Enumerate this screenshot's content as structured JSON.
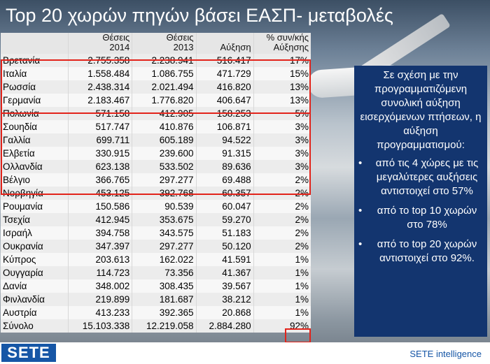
{
  "title": "Top 20 χωρών πηγών βάσει ΕΑΣΠ- μεταβολές",
  "table": {
    "headers": [
      {
        "line1": "",
        "line2": ""
      },
      {
        "line1": "Θέσεις",
        "line2": "2014"
      },
      {
        "line1": "Θέσεις",
        "line2": "2013"
      },
      {
        "line1": "",
        "line2": "Αύξηση"
      },
      {
        "line1": "% συν/κής",
        "line2": "Αύξησης"
      }
    ],
    "rows": [
      {
        "country": "Βρετανία",
        "seats2014": "2.755.358",
        "seats2013": "2.238.941",
        "increase": "516.417",
        "pct": "17%"
      },
      {
        "country": "Ιταλία",
        "seats2014": "1.558.484",
        "seats2013": "1.086.755",
        "increase": "471.729",
        "pct": "15%"
      },
      {
        "country": "Ρωσσία",
        "seats2014": "2.438.314",
        "seats2013": "2.021.494",
        "increase": "416.820",
        "pct": "13%"
      },
      {
        "country": "Γερμανία",
        "seats2014": "2.183.467",
        "seats2013": "1.776.820",
        "increase": "406.647",
        "pct": "13%"
      },
      {
        "country": "Πολωνία",
        "seats2014": "571.158",
        "seats2013": "412.905",
        "increase": "158.253",
        "pct": "5%"
      },
      {
        "country": "Σουηδία",
        "seats2014": "517.747",
        "seats2013": "410.876",
        "increase": "106.871",
        "pct": "3%"
      },
      {
        "country": "Γαλλία",
        "seats2014": "699.711",
        "seats2013": "605.189",
        "increase": "94.522",
        "pct": "3%"
      },
      {
        "country": "Ελβετία",
        "seats2014": "330.915",
        "seats2013": "239.600",
        "increase": "91.315",
        "pct": "3%"
      },
      {
        "country": "Ολλανδία",
        "seats2014": "623.138",
        "seats2013": "533.502",
        "increase": "89.636",
        "pct": "3%"
      },
      {
        "country": "Βέλγιο",
        "seats2014": "366.765",
        "seats2013": "297.277",
        "increase": "69.488",
        "pct": "2%"
      },
      {
        "country": "Νορβηγία",
        "seats2014": "453.125",
        "seats2013": "392.768",
        "increase": "60.357",
        "pct": "2%"
      },
      {
        "country": "Ρουμανία",
        "seats2014": "150.586",
        "seats2013": "90.539",
        "increase": "60.047",
        "pct": "2%"
      },
      {
        "country": "Τσεχία",
        "seats2014": "412.945",
        "seats2013": "353.675",
        "increase": "59.270",
        "pct": "2%"
      },
      {
        "country": "Ισραήλ",
        "seats2014": "394.758",
        "seats2013": "343.575",
        "increase": "51.183",
        "pct": "2%"
      },
      {
        "country": "Ουκρανία",
        "seats2014": "347.397",
        "seats2013": "297.277",
        "increase": "50.120",
        "pct": "2%"
      },
      {
        "country": "Κύπρος",
        "seats2014": "203.613",
        "seats2013": "162.022",
        "increase": "41.591",
        "pct": "1%"
      },
      {
        "country": "Ουγγαρία",
        "seats2014": "114.723",
        "seats2013": "73.356",
        "increase": "41.367",
        "pct": "1%"
      },
      {
        "country": "Δανία",
        "seats2014": "348.002",
        "seats2013": "308.435",
        "increase": "39.567",
        "pct": "1%"
      },
      {
        "country": "Φινλανδία",
        "seats2014": "219.899",
        "seats2013": "181.687",
        "increase": "38.212",
        "pct": "1%"
      },
      {
        "country": "Αυστρία",
        "seats2014": "413.233",
        "seats2013": "392.365",
        "increase": "20.868",
        "pct": "1%"
      },
      {
        "country": "Σύνολο",
        "seats2014": "15.103.338",
        "seats2013": "12.219.058",
        "increase": "2.884.280",
        "pct": "92%"
      }
    ]
  },
  "panel": {
    "intro": "Σε σχέση με την προγραμματιζόμενη συνολική αύξηση εισερχόμενων πτήσεων, η αύξηση προγραμματισμού:",
    "bullet_symbol": "•",
    "bullets": [
      "από τις 4 χώρες με τις μεγαλύτερες αυξήσεις αντιστοιχεί στο 57%",
      "από το top 10 χωρών στο 78%",
      "από το top 20 χωρών αντιστοιχεί στο 92%."
    ]
  },
  "footer": {
    "logo": "SETE",
    "tagline": "SETE intelligence"
  },
  "colors": {
    "highlight_border": "#e2231a",
    "panel_bg": "#13356f",
    "brand_blue": "#1656a6"
  }
}
